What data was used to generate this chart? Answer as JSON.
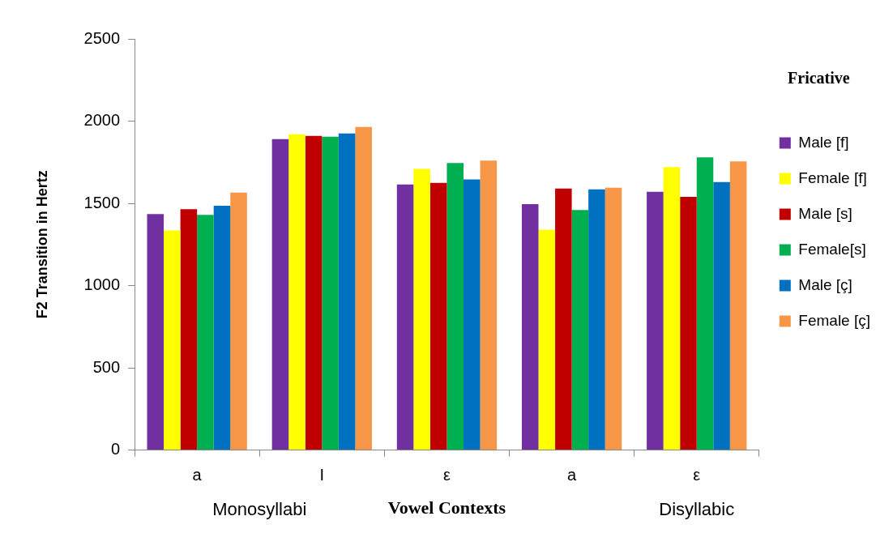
{
  "chart_data": {
    "type": "bar",
    "xlabel": "Vowel Contexts",
    "ylabel": "F2 Transition in Hertz",
    "legend_title": "Fricative",
    "legend": "right",
    "categories": [
      "a",
      "I",
      "ε",
      "a",
      "ε"
    ],
    "series": [
      {
        "name": "Male [f]",
        "color": "#7030a0",
        "values": [
          1435,
          1890,
          1615,
          1495,
          1570
        ]
      },
      {
        "name": "Female [f]",
        "color": "#ffff00",
        "values": [
          1335,
          1920,
          1710,
          1340,
          1720
        ]
      },
      {
        "name": "Male [s]",
        "color": "#c00000",
        "values": [
          1465,
          1910,
          1625,
          1590,
          1540
        ]
      },
      {
        "name": "Female[s]",
        "color": "#00b050",
        "values": [
          1430,
          1905,
          1745,
          1460,
          1780
        ]
      },
      {
        "name": "Male [ç]",
        "color": "#0070c0",
        "values": [
          1485,
          1925,
          1645,
          1585,
          1630
        ]
      },
      {
        "name": "Female [ç]",
        "color": "#f79646",
        "values": [
          1565,
          1965,
          1760,
          1595,
          1755
        ]
      }
    ],
    "ylim": [
      0,
      2500
    ],
    "yticks": [
      0,
      500,
      1000,
      1500,
      2000,
      2500
    ],
    "grid": false,
    "annotations": [
      "Monosyllabi",
      "Disyllabic"
    ]
  }
}
